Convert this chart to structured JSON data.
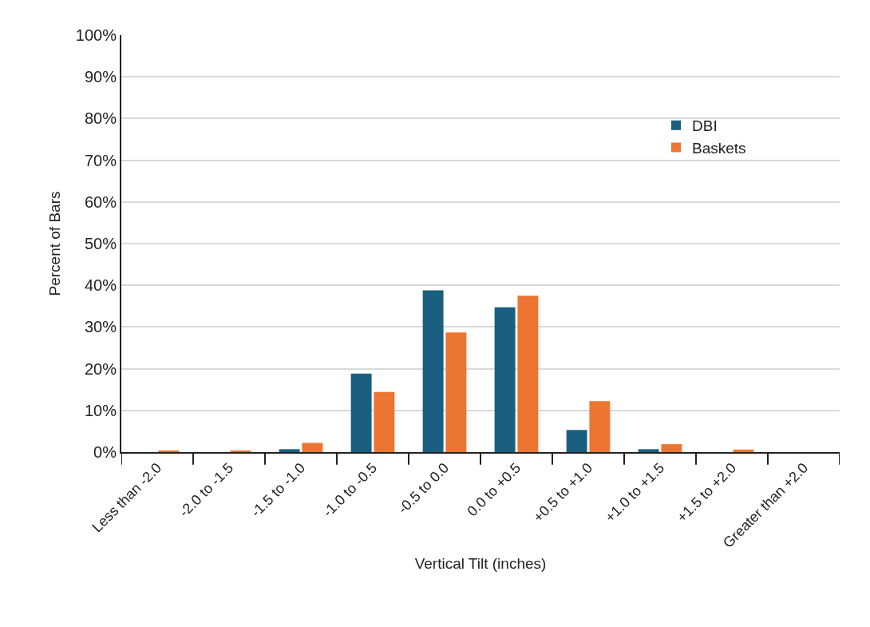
{
  "chart_data": {
    "type": "bar",
    "xlabel": "Vertical Tilt (inches)",
    "ylabel": "Percent of Bars",
    "categories": [
      "Less than -2.0",
      "-2.0 to -1.5",
      "-1.5 to -1.0",
      "-1.0 to -0.5",
      "-0.5 to 0.0",
      "0.0 to +0.5",
      "+0.5 to +1.0",
      "+1.0 to +1.5",
      "+1.5 to +2.0",
      "Greater than +2.0"
    ],
    "series": [
      {
        "name": "DBI",
        "color": "#1a5e80",
        "values": [
          0,
          0,
          0.7,
          18.8,
          38.8,
          34.7,
          5.3,
          0.7,
          0,
          0
        ]
      },
      {
        "name": "Baskets",
        "color": "#ec7532",
        "values": [
          0.4,
          0.4,
          2.2,
          14.4,
          28.7,
          37.5,
          12.2,
          1.9,
          0.6,
          0
        ]
      }
    ],
    "ylim": [
      0,
      100
    ],
    "yticks": [
      {
        "value": 0,
        "label": "0%"
      },
      {
        "value": 10,
        "label": "10%"
      },
      {
        "value": 20,
        "label": "20%"
      },
      {
        "value": 30,
        "label": "30%"
      },
      {
        "value": 40,
        "label": "40%"
      },
      {
        "value": 50,
        "label": "50%"
      },
      {
        "value": 60,
        "label": "60%"
      },
      {
        "value": 70,
        "label": "70%"
      },
      {
        "value": 80,
        "label": "80%"
      },
      {
        "value": 90,
        "label": "90%"
      },
      {
        "value": 100,
        "label": "100%"
      }
    ],
    "grid": "y",
    "legend": "top right"
  }
}
